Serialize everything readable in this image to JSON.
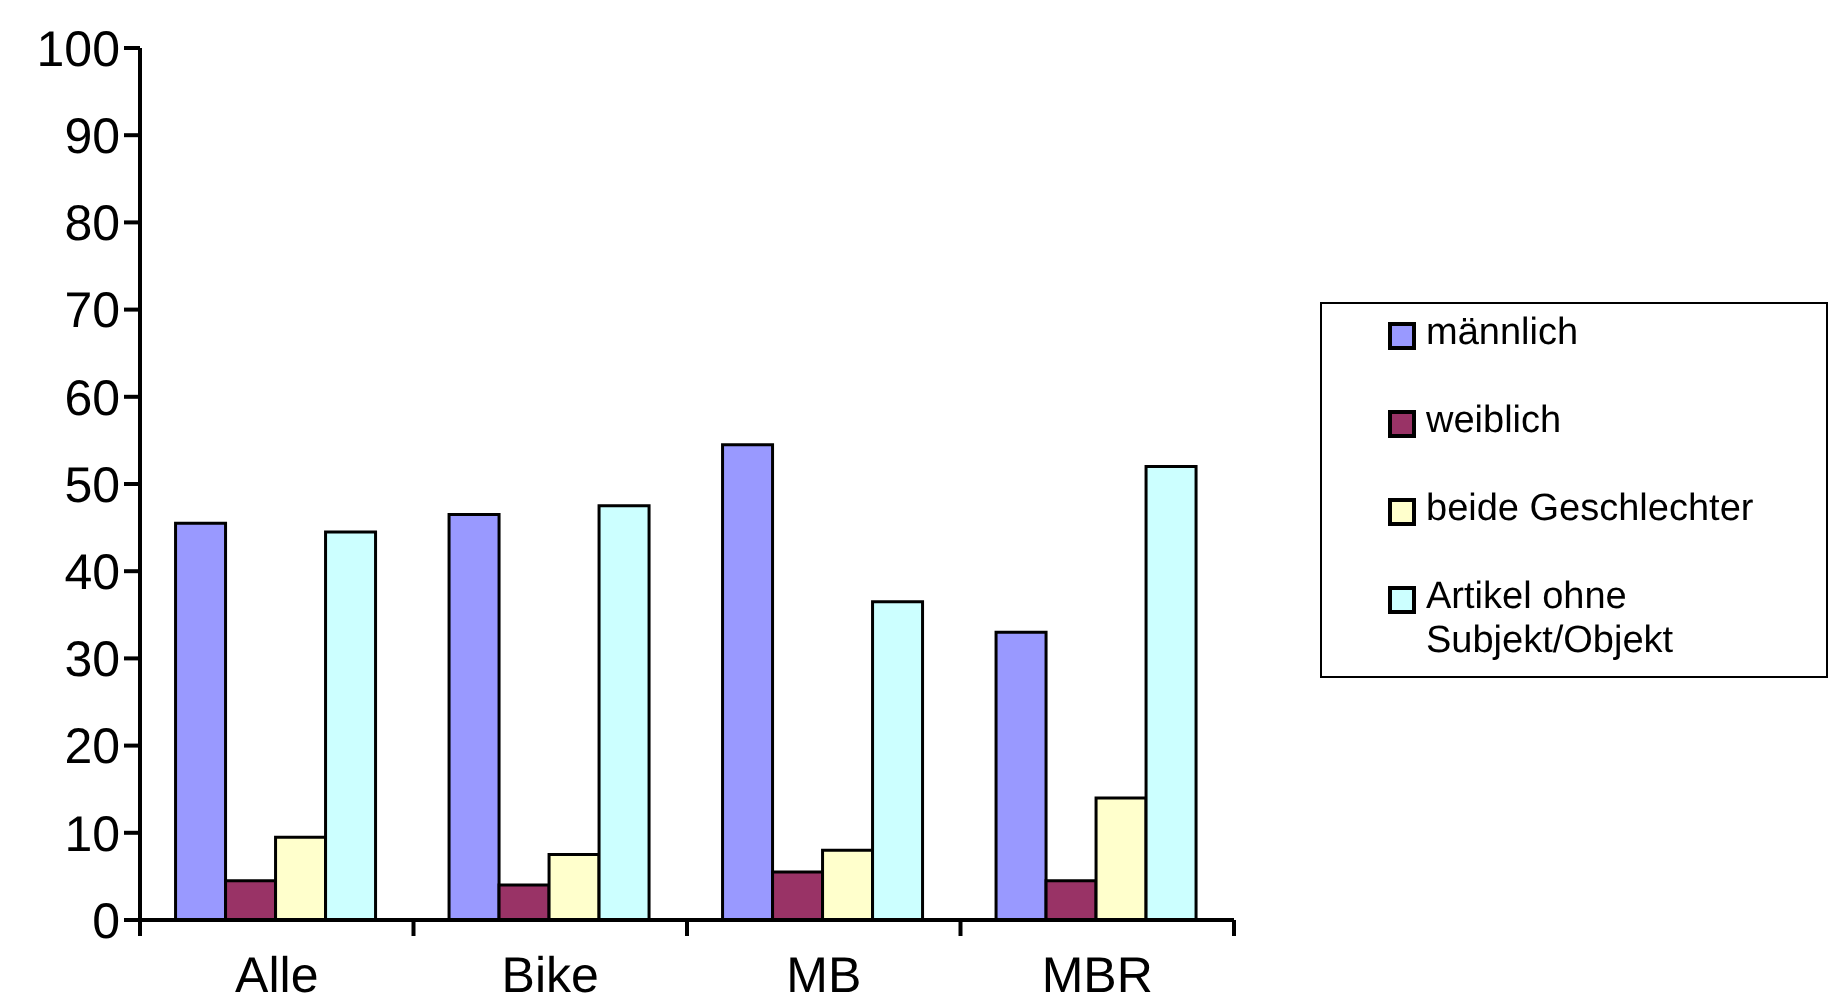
{
  "chart_data": {
    "type": "bar",
    "categories": [
      "Alle",
      "Bike",
      "MB",
      "MBR"
    ],
    "series": [
      {
        "name": "männlich",
        "color": "#9999ff",
        "values": [
          45.5,
          46.5,
          54.5,
          33
        ]
      },
      {
        "name": "weiblich",
        "color": "#993366",
        "values": [
          4.5,
          4,
          5.5,
          4.5
        ]
      },
      {
        "name": "beide Geschlechter",
        "color": "#ffffcc",
        "values": [
          9.5,
          7.5,
          8,
          14
        ]
      },
      {
        "name": "Artikel ohne Subjekt/Objekt",
        "color": "#ccffff",
        "values": [
          44.5,
          47.5,
          36.5,
          52
        ]
      }
    ],
    "ylim": [
      0,
      100
    ],
    "yticks": [
      0,
      10,
      20,
      30,
      40,
      50,
      60,
      70,
      80,
      90,
      100
    ],
    "legend": "right"
  }
}
